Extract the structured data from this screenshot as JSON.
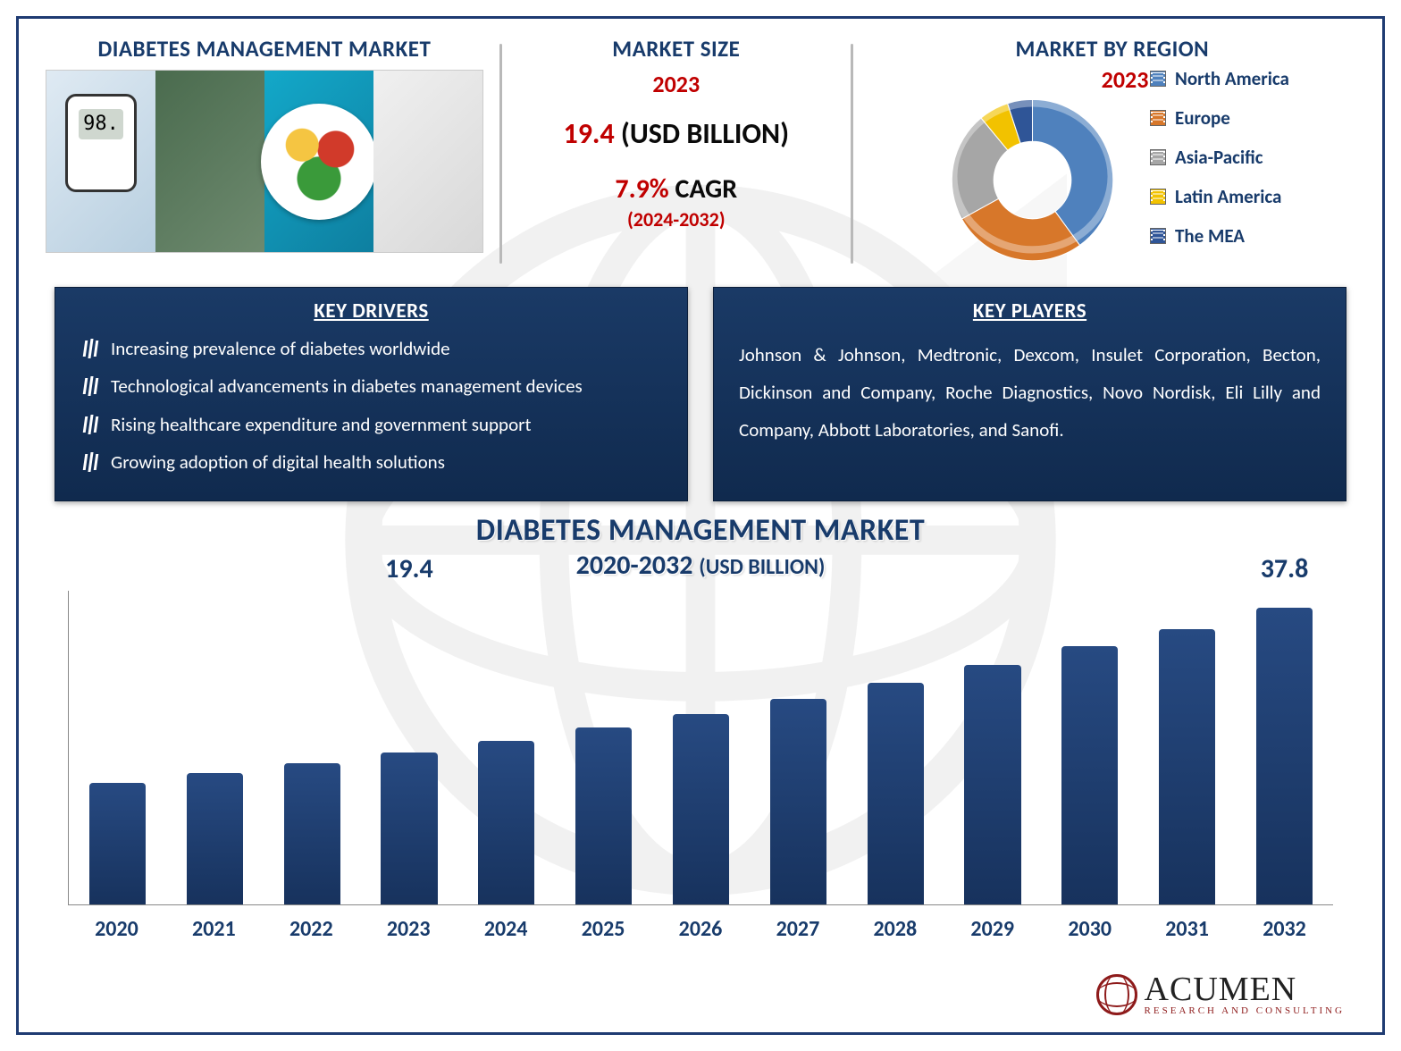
{
  "header": {
    "left_title": "DIABETES MANAGEMENT MARKET",
    "mid_title": "MARKET SIZE",
    "mid_year": "2023",
    "mid_value_num": "19.4",
    "mid_value_unit": "(USD BILLION)",
    "mid_cagr_num": "7.9%",
    "mid_cagr_label": "CAGR",
    "mid_range": "(2024-2032)",
    "right_title": "MARKET BY REGION",
    "right_year": "2023"
  },
  "region_donut": {
    "type": "donut",
    "inner_radius_pct": 48,
    "segments": [
      {
        "label": "North America",
        "value": 40,
        "color": "#4f81bd"
      },
      {
        "label": "Europe",
        "value": 27,
        "color": "#d7772a"
      },
      {
        "label": "Asia-Pacific",
        "value": 22,
        "color": "#a6a6a6"
      },
      {
        "label": "Latin America",
        "value": 6,
        "color": "#f2c200"
      },
      {
        "label": "The MEA",
        "value": 5,
        "color": "#2f5597"
      }
    ],
    "legend_marker_pattern": "striped",
    "background_color": "#ffffff"
  },
  "drivers": {
    "title": "KEY DRIVERS",
    "items": [
      "Increasing prevalence of diabetes worldwide",
      "Technological advancements in diabetes management devices",
      "Rising healthcare expenditure and government support",
      "Growing adoption of digital health solutions"
    ]
  },
  "players": {
    "title": "KEY PLAYERS",
    "text": "Johnson & Johnson, Medtronic, Dexcom, Insulet Corporation, Becton, Dickinson and Company, Roche Diagnostics, Novo Nordisk, Eli Lilly and Company, Abbott Laboratories, and Sanofi."
  },
  "chart": {
    "type": "bar",
    "title_line1": "DIABETES MANAGEMENT MARKET",
    "title_line2_main": "2020-2032",
    "title_line2_sub": "(USD BILLION)",
    "categories": [
      "2020",
      "2021",
      "2022",
      "2023",
      "2024",
      "2025",
      "2026",
      "2027",
      "2028",
      "2029",
      "2030",
      "2031",
      "2032"
    ],
    "values": [
      15.5,
      16.7,
      18.0,
      19.4,
      20.9,
      22.6,
      24.3,
      26.2,
      28.3,
      30.5,
      32.9,
      35.1,
      37.8
    ],
    "value_labels": {
      "2023": "19.4",
      "2032": "37.8"
    },
    "bar_color_top": "#274a82",
    "bar_color_bottom": "#17325d",
    "bar_width": 0.58,
    "ylim": [
      0,
      40
    ],
    "axis_color": "#888888",
    "xlabel_color": "#183b6b",
    "xlabel_fontsize": 24,
    "value_label_fontsize": 30,
    "value_label_color": "#183b6b",
    "background_color": "#ffffff"
  },
  "panel_style": {
    "bg_top": "#1a3a66",
    "bg_bottom": "#102a4e",
    "text_color": "#ffffff",
    "title_fontsize": 23,
    "body_fontsize": 21
  },
  "logo": {
    "name": "ACUMEN",
    "tagline": "RESEARCH AND CONSULTING"
  },
  "colors": {
    "frame_border": "#1f3b72",
    "heading": "#183b6b",
    "accent_red": "#c00000",
    "divider": "#b9b9b9"
  }
}
